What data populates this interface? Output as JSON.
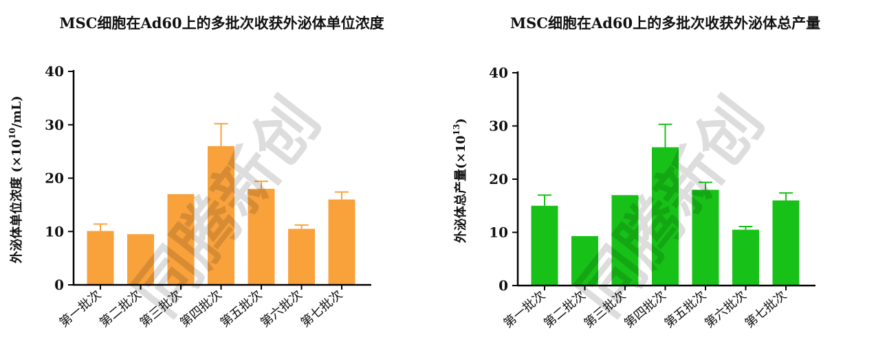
{
  "watermark": "同腾新创",
  "charts": [
    {
      "title": "MSC细胞在Ad60上的多批次收获外泌体单位浓度",
      "ylabel_main": "外泌体单位浓度 (×10",
      "ylabel_sup": "10",
      "ylabel_tail": "/mL)",
      "color": "#F9A23C"
    },
    {
      "title": "MSC细胞在Ad60上的多批次收获外泌体总产量",
      "ylabel_main": "外泌体总产量(×10",
      "ylabel_sup": "13",
      "ylabel_tail": ")",
      "color": "#18C118"
    }
  ],
  "chart_data": [
    {
      "type": "bar",
      "title": "MSC细胞在Ad60上的多批次收获外泌体单位浓度",
      "categories": [
        "第一批次",
        "第二批次",
        "第三批次",
        "第四批次",
        "第五批次",
        "第六批次",
        "第七批次"
      ],
      "values": [
        10.1,
        9.5,
        17.0,
        26.0,
        18.0,
        10.5,
        16.0
      ],
      "errors": [
        1.3,
        0,
        0,
        4.2,
        1.4,
        0.7,
        1.4
      ],
      "ylabel": "外泌体单位浓度 (×10^10/mL)",
      "ylim": [
        0,
        40
      ],
      "yticks": [
        0,
        10,
        20,
        30,
        40
      ],
      "grid": false,
      "color": "#F9A23C"
    },
    {
      "type": "bar",
      "title": "MSC细胞在Ad60上的多批次收获外泌体总产量",
      "categories": [
        "第一批次",
        "第二批次",
        "第三批次",
        "第四批次",
        "第五批次",
        "第六批次",
        "第七批次"
      ],
      "values": [
        15.0,
        9.3,
        17.0,
        26.0,
        18.0,
        10.5,
        16.0
      ],
      "errors": [
        2.0,
        0,
        0,
        4.3,
        1.4,
        0.6,
        1.4
      ],
      "ylabel": "外泌体总产量(×10^13)",
      "ylim": [
        0,
        40
      ],
      "yticks": [
        0,
        10,
        20,
        30,
        40
      ],
      "grid": false,
      "color": "#18C118"
    }
  ]
}
